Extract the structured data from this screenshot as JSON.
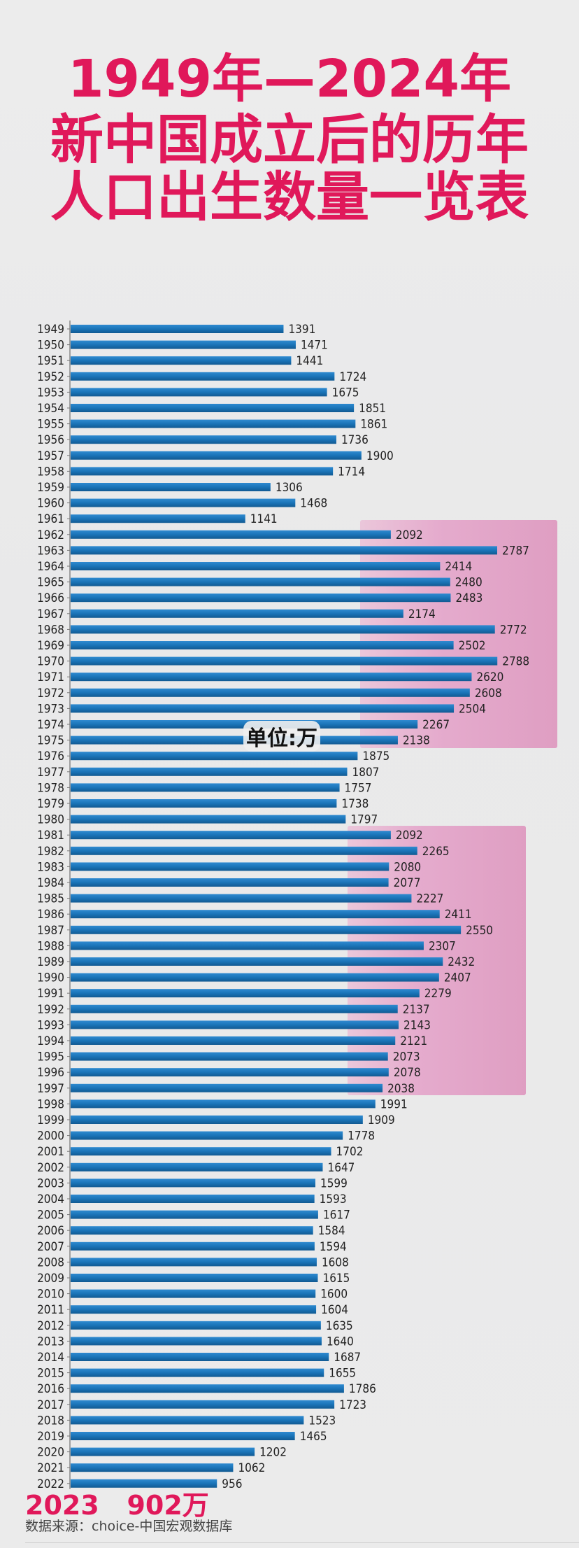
{
  "title": {
    "line1": "1949年—2024年",
    "line2": "新中国成立后的历年",
    "line3": "人口出生数量一览表"
  },
  "unit_label": "单位:万",
  "highlight_2023": "2023   902万",
  "source": "数据来源：choice-中国宏观数据库",
  "colors": {
    "title": "#e0185a",
    "bar": "#1a74b8",
    "highlight": "#e4a0c8",
    "label": "#222222"
  },
  "chart_data": {
    "type": "bar",
    "orientation": "horizontal",
    "title": "1949年—2024年 新中国成立后的历年人口出生数量一览表",
    "xlabel": "",
    "ylabel": "",
    "unit": "万",
    "xlim": [
      0,
      2800
    ],
    "grid": false,
    "legend": "none",
    "categories": [
      "1949",
      "1950",
      "1951",
      "1952",
      "1953",
      "1954",
      "1955",
      "1956",
      "1957",
      "1958",
      "1959",
      "1960",
      "1961",
      "1962",
      "1963",
      "1964",
      "1965",
      "1966",
      "1967",
      "1968",
      "1969",
      "1970",
      "1971",
      "1972",
      "1973",
      "1974",
      "1975",
      "1976",
      "1977",
      "1978",
      "1979",
      "1980",
      "1981",
      "1982",
      "1983",
      "1984",
      "1985",
      "1986",
      "1987",
      "1988",
      "1989",
      "1990",
      "1991",
      "1992",
      "1993",
      "1994",
      "1995",
      "1996",
      "1997",
      "1998",
      "1999",
      "2000",
      "2001",
      "2002",
      "2003",
      "2004",
      "2005",
      "2006",
      "2007",
      "2008",
      "2009",
      "2010",
      "2011",
      "2012",
      "2013",
      "2014",
      "2015",
      "2016",
      "2017",
      "2018",
      "2019",
      "2020",
      "2021",
      "2022"
    ],
    "values": [
      1391,
      1471,
      1441,
      1724,
      1675,
      1851,
      1861,
      1736,
      1900,
      1714,
      1306,
      1468,
      1141,
      2092,
      2787,
      2414,
      2480,
      2483,
      2174,
      2772,
      2502,
      2788,
      2620,
      2608,
      2504,
      2267,
      2138,
      1875,
      1807,
      1757,
      1738,
      1797,
      2092,
      2265,
      2080,
      2077,
      2227,
      2411,
      2550,
      2307,
      2432,
      2407,
      2279,
      2137,
      2143,
      2121,
      2073,
      2078,
      2038,
      1991,
      1909,
      1778,
      1702,
      1647,
      1599,
      1593,
      1617,
      1584,
      1594,
      1608,
      1615,
      1600,
      1604,
      1635,
      1640,
      1687,
      1655,
      1786,
      1723,
      1523,
      1465,
      1202,
      1062,
      956
    ],
    "highlighted_ranges": [
      {
        "from": "1962",
        "to": "1975"
      },
      {
        "from": "1981",
        "to": "1997"
      }
    ],
    "annotation": {
      "year": "2023",
      "value": 902,
      "text": "2023   902万"
    }
  }
}
